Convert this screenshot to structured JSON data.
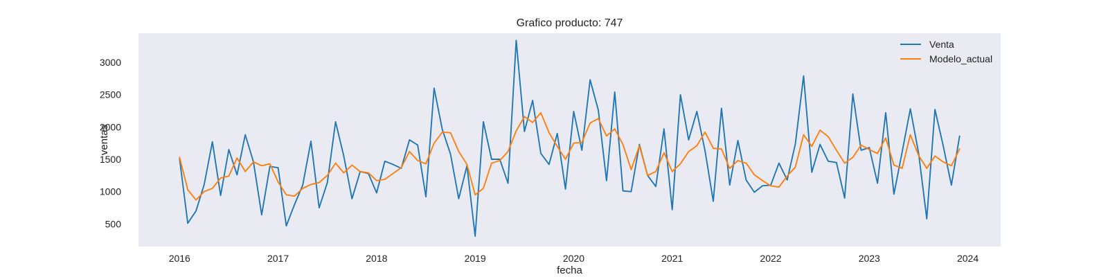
{
  "chart_data": {
    "type": "line",
    "title": "Grafico producto: 747",
    "xlabel": "fecha",
    "ylabel": "ventas",
    "grid": false,
    "legend_position": "top-right",
    "x_start": "2016-01",
    "x_frequency": "monthly",
    "x_ticks": [
      "2016",
      "2017",
      "2018",
      "2019",
      "2020",
      "2021",
      "2022",
      "2023",
      "2024"
    ],
    "y_ticks": [
      500,
      1000,
      1500,
      2000,
      2500,
      3000
    ],
    "xlim": [
      "2015-08",
      "2024-05"
    ],
    "ylim": [
      150,
      3450
    ],
    "background_color": "#eaeaf2",
    "series": [
      {
        "name": "Venta",
        "color": "#1f77b4",
        "values": [
          1510,
          510,
          700,
          1110,
          1770,
          940,
          1650,
          1260,
          1880,
          1460,
          640,
          1390,
          1370,
          470,
          800,
          1100,
          1780,
          750,
          1140,
          2080,
          1550,
          890,
          1310,
          1280,
          980,
          1470,
          1420,
          1360,
          1800,
          1720,
          920,
          2600,
          1960,
          1580,
          890,
          1400,
          310,
          2080,
          1500,
          1500,
          1130,
          3340,
          1930,
          2410,
          1590,
          1420,
          1900,
          1040,
          2240,
          1640,
          2730,
          2260,
          1170,
          2540,
          1010,
          1000,
          1730,
          1250,
          1080,
          1970,
          720,
          2500,
          1800,
          2240,
          1630,
          850,
          2290,
          1100,
          1790,
          1180,
          990,
          1090,
          1100,
          1440,
          1180,
          1740,
          2790,
          1300,
          1730,
          1470,
          1450,
          900,
          2510,
          1640,
          1680,
          1130,
          2220,
          960,
          1610,
          2280,
          1600,
          580,
          2270,
          1710,
          1100,
          1860
        ]
      },
      {
        "name": "Modelo_actual",
        "color": "#ff7f0e",
        "values": [
          1530,
          1030,
          870,
          1000,
          1050,
          1210,
          1240,
          1520,
          1310,
          1460,
          1400,
          1430,
          1150,
          950,
          930,
          1050,
          1110,
          1140,
          1250,
          1440,
          1290,
          1410,
          1310,
          1290,
          1170,
          1190,
          1280,
          1370,
          1620,
          1480,
          1430,
          1750,
          1920,
          1910,
          1620,
          1420,
          950,
          1050,
          1440,
          1480,
          1620,
          1940,
          2160,
          2070,
          2220,
          1910,
          1700,
          1500,
          1750,
          1760,
          2060,
          2130,
          1860,
          1970,
          1730,
          1340,
          1710,
          1250,
          1310,
          1600,
          1310,
          1430,
          1620,
          1710,
          1920,
          1670,
          1660,
          1360,
          1480,
          1440,
          1260,
          1170,
          1090,
          1070,
          1240,
          1380,
          1880,
          1700,
          1950,
          1850,
          1640,
          1440,
          1530,
          1720,
          1650,
          1590,
          1830,
          1410,
          1360,
          1880,
          1560,
          1360,
          1550,
          1460,
          1400,
          1660
        ]
      }
    ]
  }
}
